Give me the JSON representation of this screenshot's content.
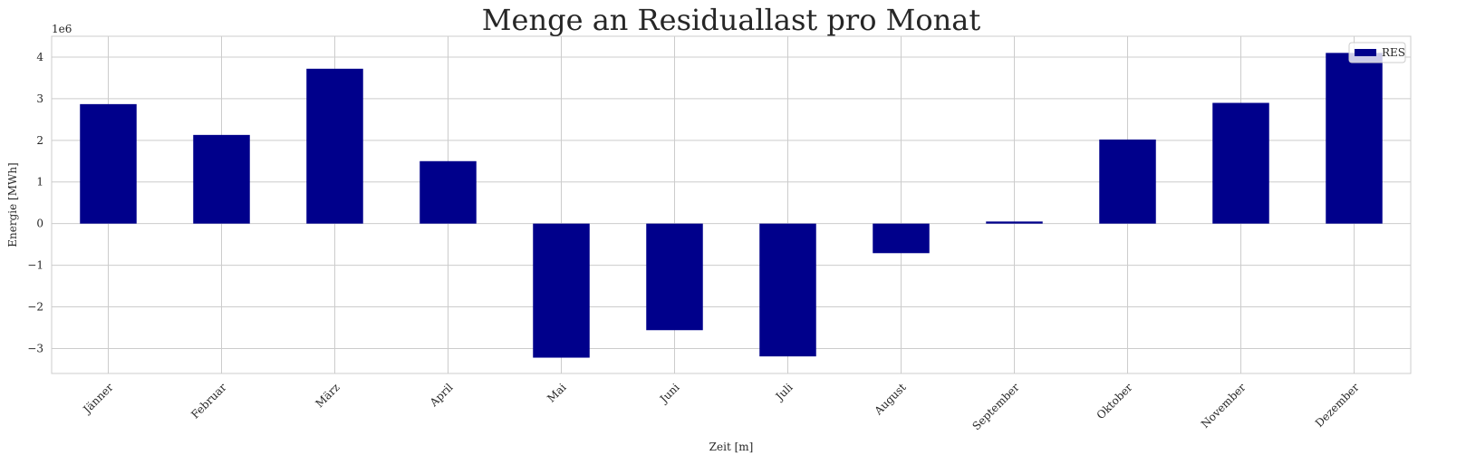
{
  "chart_data": {
    "type": "bar",
    "title": "Menge an Residuallast pro Monat",
    "xlabel": "Zeit [m]",
    "ylabel": "Energie [MWh]",
    "y_scale_label": "1e6",
    "categories": [
      "Jänner",
      "Februar",
      "März",
      "April",
      "Mai",
      "Juni",
      "Juli",
      "August",
      "September",
      "Oktober",
      "November",
      "Dezember"
    ],
    "series": [
      {
        "name": "RES",
        "color": "#00008b",
        "values": [
          2870000,
          2130000,
          3720000,
          1500000,
          -3220000,
          -2560000,
          -3190000,
          -710000,
          50000,
          2020000,
          2900000,
          4100000
        ]
      }
    ],
    "ylim": [
      -3600000,
      4500000
    ],
    "yticks": [
      -3000000,
      -2000000,
      -1000000,
      0,
      1000000,
      2000000,
      3000000,
      4000000
    ],
    "ytick_labels": [
      "−3",
      "−2",
      "−1",
      "0",
      "1",
      "2",
      "3",
      "4"
    ],
    "grid": true,
    "legend_position": "top-right",
    "colors": {
      "bar": "#00008b",
      "grid": "#cccccc",
      "frame": "#cccccc",
      "text": "#262626"
    }
  }
}
